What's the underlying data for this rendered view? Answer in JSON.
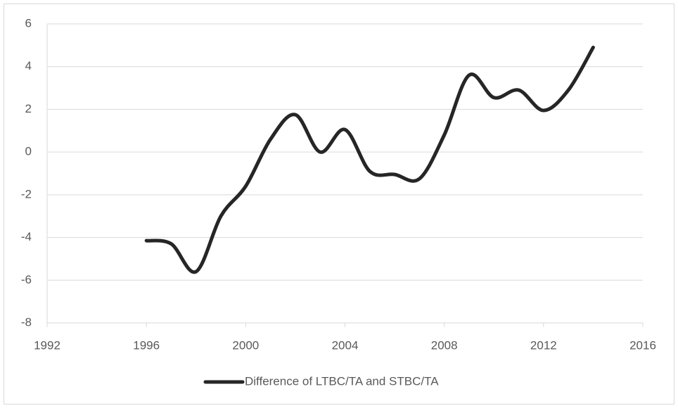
{
  "chart_data": {
    "type": "line",
    "x": [
      1996,
      1997,
      1998,
      1999,
      2000,
      2001,
      2002,
      2003,
      2004,
      2005,
      2006,
      2007,
      2008,
      2009,
      2010,
      2011,
      2012,
      2013,
      2014
    ],
    "series": [
      {
        "name": "Difference of LTBC/TA and STBC/TA",
        "color": "#262626",
        "values": [
          -4.15,
          -4.3,
          -5.6,
          -3.0,
          -1.6,
          0.6,
          1.75,
          0.0,
          1.05,
          -0.9,
          -1.05,
          -1.25,
          0.8,
          3.6,
          2.55,
          2.9,
          1.95,
          2.9,
          4.9
        ]
      }
    ],
    "xlim": [
      1992,
      2016
    ],
    "xticks": [
      1992,
      1996,
      2000,
      2004,
      2008,
      2012,
      2016
    ],
    "ylim": [
      -8,
      6
    ],
    "yticks": [
      -8,
      -6,
      -4,
      -2,
      0,
      2,
      4,
      6
    ],
    "grid": true,
    "smooth": true,
    "legend": "bottom"
  }
}
